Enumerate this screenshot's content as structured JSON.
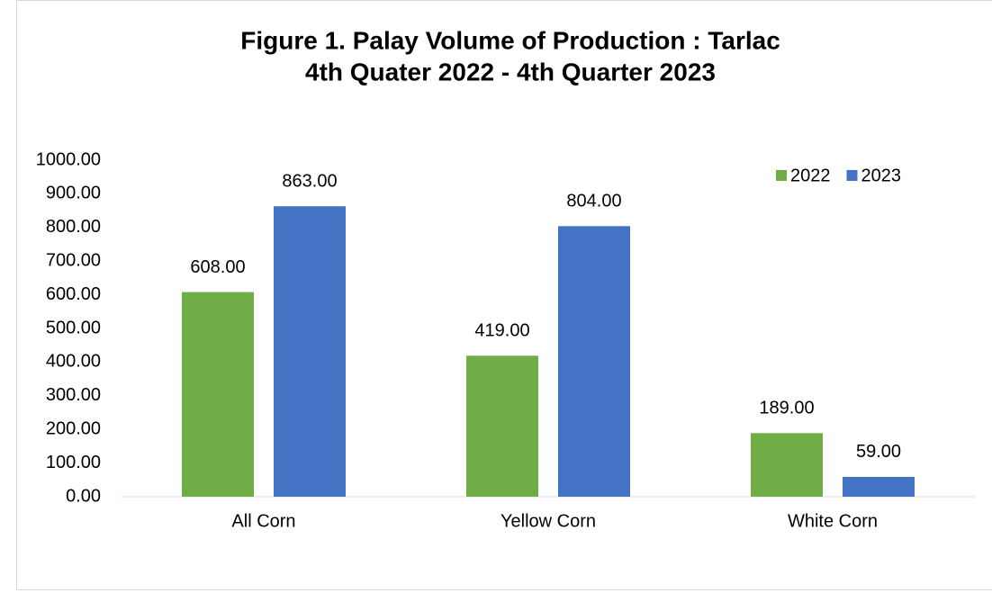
{
  "chart_data": {
    "type": "bar",
    "title": "Figure 1. Palay Volume of Production : Tarlac",
    "subtitle": "4th Quater 2022 - 4th Quarter 2023",
    "categories": [
      "All Corn",
      "Yellow Corn",
      "White Corn"
    ],
    "series": [
      {
        "name": "2022",
        "color": "#70ad47",
        "values": [
          608,
          419,
          189
        ],
        "value_labels": [
          "608.00",
          "419.00",
          "189.00"
        ]
      },
      {
        "name": "2023",
        "color": "#4472c4",
        "values": [
          863,
          804,
          59
        ],
        "value_labels": [
          "863.00",
          "804.00",
          "59.00"
        ]
      }
    ],
    "ylim": [
      0,
      1000
    ],
    "yticks": [
      {
        "value": 0,
        "label": "0.00"
      },
      {
        "value": 100,
        "label": "100.00"
      },
      {
        "value": 200,
        "label": "200.00"
      },
      {
        "value": 300,
        "label": "300.00"
      },
      {
        "value": 400,
        "label": "400.00"
      },
      {
        "value": 500,
        "label": "500.00"
      },
      {
        "value": 600,
        "label": "600.00"
      },
      {
        "value": 700,
        "label": "700.00"
      },
      {
        "value": 800,
        "label": "800.00"
      },
      {
        "value": 900,
        "label": "900.00"
      },
      {
        "value": 1000,
        "label": "1000.00"
      }
    ],
    "grid": false,
    "legend": "top-right"
  }
}
